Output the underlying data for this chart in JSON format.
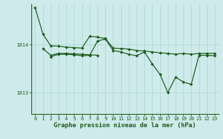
{
  "bg_color": "#ceeaea",
  "grid_color": "#b0d8d8",
  "line_color": "#1a5c1a",
  "marker_color": "#1a5c1a",
  "xlabel": "Graphe pression niveau de la mer (hPa)",
  "xlabel_fontsize": 6.5,
  "yticks": [
    1013,
    1014
  ],
  "ylim": [
    1012.55,
    1014.85
  ],
  "xlim": [
    -0.5,
    23.5
  ],
  "xticks": [
    0,
    1,
    2,
    3,
    4,
    5,
    6,
    7,
    8,
    9,
    10,
    11,
    12,
    13,
    14,
    15,
    16,
    17,
    18,
    19,
    20,
    21,
    22,
    23
  ],
  "series": [
    {
      "points": [
        [
          0,
          1014.78
        ],
        [
          1,
          1014.22
        ],
        [
          2,
          1013.98
        ],
        [
          3,
          1013.97
        ],
        [
          4,
          1013.95
        ],
        [
          5,
          1013.94
        ],
        [
          6,
          1013.93
        ],
        [
          7,
          1014.18
        ],
        [
          8,
          1014.16
        ],
        [
          9,
          1014.13
        ],
        [
          10,
          1013.93
        ],
        [
          11,
          1013.92
        ],
        [
          12,
          1013.91
        ],
        [
          13,
          1013.88
        ],
        [
          14,
          1013.87
        ],
        [
          15,
          1013.85
        ],
        [
          16,
          1013.83
        ],
        [
          17,
          1013.82
        ],
        [
          18,
          1013.8
        ],
        [
          19,
          1013.82
        ],
        [
          20,
          1013.8
        ],
        [
          21,
          1013.82
        ],
        [
          22,
          1013.82
        ],
        [
          23,
          1013.82
        ]
      ]
    },
    {
      "points": [
        [
          1,
          1013.92
        ],
        [
          2,
          1013.78
        ],
        [
          3,
          1013.82
        ],
        [
          4,
          1013.82
        ],
        [
          5,
          1013.81
        ],
        [
          6,
          1013.8
        ],
        [
          7,
          1013.79
        ],
        [
          8,
          1013.78
        ]
      ]
    },
    {
      "points": [
        [
          2,
          1013.75
        ],
        [
          3,
          1013.8
        ],
        [
          4,
          1013.8
        ],
        [
          5,
          1013.79
        ],
        [
          6,
          1013.77
        ],
        [
          7,
          1013.78
        ],
        [
          8,
          1014.08
        ],
        [
          9,
          1014.12
        ],
        [
          10,
          1013.88
        ],
        [
          11,
          1013.85
        ],
        [
          12,
          1013.8
        ],
        [
          13,
          1013.77
        ],
        [
          14,
          1013.85
        ],
        [
          15,
          1013.6
        ],
        [
          16,
          1013.38
        ],
        [
          17,
          1013.0
        ],
        [
          18,
          1013.32
        ],
        [
          19,
          1013.22
        ],
        [
          20,
          1013.17
        ],
        [
          21,
          1013.78
        ],
        [
          22,
          1013.78
        ],
        [
          23,
          1013.77
        ]
      ]
    }
  ],
  "tick_fontsize": 5.2,
  "tick_color": "#1a5c1a",
  "axis_color": "#1a5c1a",
  "label_color": "#1a5c1a"
}
